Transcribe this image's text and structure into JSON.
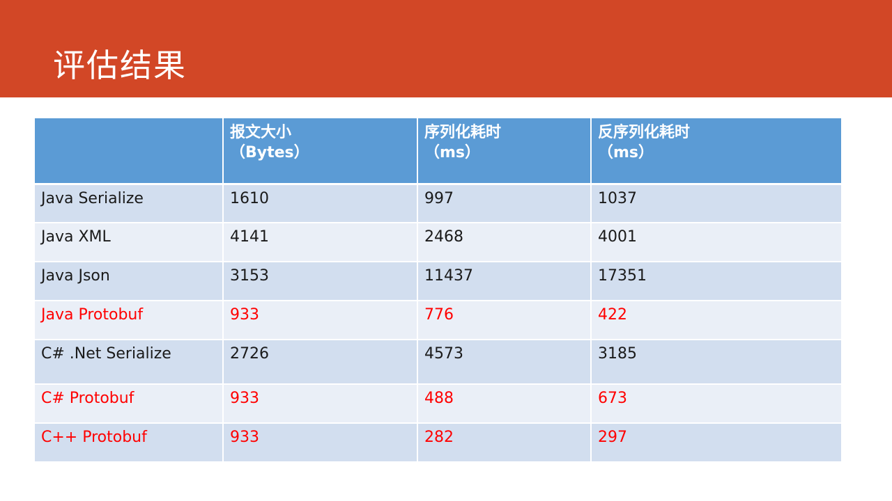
{
  "slide": {
    "title": "评估结果"
  },
  "table": {
    "headers": [
      {
        "line1": "",
        "line2": ""
      },
      {
        "line1": "报文大小",
        "line2": "（Bytes）"
      },
      {
        "line1": "序列化耗时",
        "line2": "（ms）"
      },
      {
        "line1": "反序列化耗时",
        "line2": "（ms）"
      }
    ],
    "rows": [
      {
        "cells": [
          "Java Serialize",
          "1610",
          "997",
          "1037"
        ],
        "highlight": false
      },
      {
        "cells": [
          "Java XML",
          "4141",
          "2468",
          "4001"
        ],
        "highlight": false
      },
      {
        "cells": [
          "Java Json",
          "3153",
          "11437",
          "17351"
        ],
        "highlight": false
      },
      {
        "cells": [
          "Java Protobuf",
          "933",
          "776",
          "422"
        ],
        "highlight": true
      },
      {
        "cells": [
          "C# .Net Serialize",
          "2726",
          "4573",
          "3185"
        ],
        "highlight": false
      },
      {
        "cells": [
          "C# Protobuf",
          "933",
          "488",
          "673"
        ],
        "highlight": true
      },
      {
        "cells": [
          "C++ Protobuf",
          "933",
          "282",
          "297"
        ],
        "highlight": true
      }
    ]
  },
  "colors": {
    "title_bar": "#d24726",
    "header_fill": "#5b9bd5",
    "row_odd": "#d2deef",
    "row_even": "#eaeff7",
    "highlight_text": "#ff0000"
  }
}
